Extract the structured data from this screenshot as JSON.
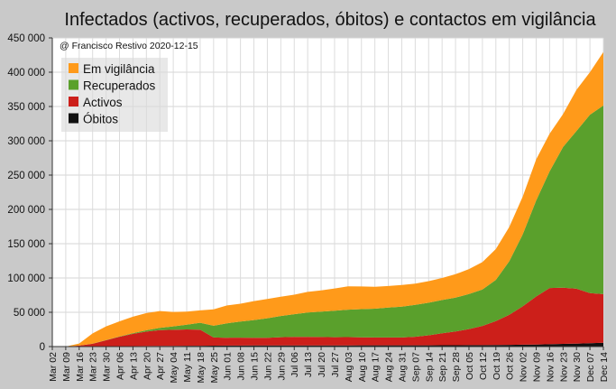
{
  "chart_data": {
    "type": "area",
    "stacked": true,
    "title": "Infectados (activos, recuperados, óbitos) e contactos em vigilância",
    "annotation": "@ Francisco Restivo 2020-12-15",
    "xlabel": "",
    "ylabel": "",
    "ylim": [
      0,
      450000
    ],
    "yticks": [
      "450 000",
      "400 000",
      "350 000",
      "300 000",
      "250 000",
      "200 000",
      "150 000",
      "100 000",
      "50 000",
      "0"
    ],
    "grid": true,
    "legend_position": "top-left",
    "x": [
      "Mar 02",
      "Mar 09",
      "Mar 16",
      "Mar 23",
      "Mar 30",
      "Apr 06",
      "Apr 13",
      "Apr 20",
      "Apr 27",
      "May 04",
      "May 11",
      "May 18",
      "May 25",
      "Jun 01",
      "Jun 08",
      "Jun 15",
      "Jun 22",
      "Jun 29",
      "Jul 06",
      "Jul 13",
      "Jul 20",
      "Jul 27",
      "Aug 03",
      "Aug 10",
      "Aug 17",
      "Aug 24",
      "Aug 31",
      "Sep 07",
      "Sep 14",
      "Sep 21",
      "Sep 28",
      "Oct 05",
      "Oct 12",
      "Oct 19",
      "Oct 26",
      "Nov 02",
      "Nov 09",
      "Nov 16",
      "Nov 23",
      "Nov 30",
      "Dec 07",
      "Dec 14"
    ],
    "series": [
      {
        "name": "Óbitos",
        "color": "#111111",
        "values": [
          0,
          0,
          0,
          100,
          200,
          400,
          600,
          800,
          900,
          1000,
          1150,
          1250,
          1350,
          1450,
          1500,
          1550,
          1600,
          1650,
          1700,
          1700,
          1720,
          1740,
          1760,
          1780,
          1800,
          1820,
          1840,
          1860,
          1900,
          1950,
          2000,
          2050,
          2150,
          2300,
          2500,
          2700,
          3000,
          3400,
          3900,
          4400,
          5000,
          5500
        ]
      },
      {
        "name": "Activos",
        "color": "#cc1f1a",
        "values": [
          0,
          0,
          1500,
          4000,
          9000,
          14000,
          18000,
          21000,
          23000,
          23500,
          23800,
          23500,
          12000,
          11500,
          11500,
          11200,
          11200,
          12000,
          12500,
          12500,
          12200,
          12000,
          12000,
          11800,
          11500,
          11500,
          11500,
          12500,
          14500,
          17500,
          20000,
          23500,
          28000,
          35000,
          44000,
          56000,
          70000,
          82000,
          82000,
          80000,
          73000,
          71000
        ]
      },
      {
        "name": "Recuperados",
        "color": "#5aa02c",
        "values": [
          0,
          0,
          0,
          100,
          300,
          500,
          1000,
          2000,
          3500,
          5000,
          7000,
          10000,
          17000,
          21000,
          23500,
          26000,
          28500,
          31000,
          33000,
          35500,
          37000,
          38500,
          40000,
          41000,
          42000,
          43500,
          45000,
          46500,
          47500,
          48500,
          49500,
          51000,
          53000,
          60000,
          78000,
          105000,
          140000,
          170000,
          205000,
          230000,
          260000,
          275000
        ]
      },
      {
        "name": "Em vigilância",
        "color": "#ff9a1a",
        "values": [
          0,
          0,
          3000,
          15000,
          20000,
          22000,
          24000,
          25000,
          24500,
          21000,
          19000,
          18000,
          24000,
          26000,
          26000,
          27500,
          28000,
          28000,
          28500,
          30000,
          31000,
          32500,
          34000,
          33000,
          32000,
          31500,
          31500,
          31000,
          31500,
          32000,
          34000,
          36500,
          40000,
          45000,
          50000,
          55000,
          60000,
          55000,
          48000,
          60000,
          62000,
          78000
        ]
      }
    ]
  }
}
